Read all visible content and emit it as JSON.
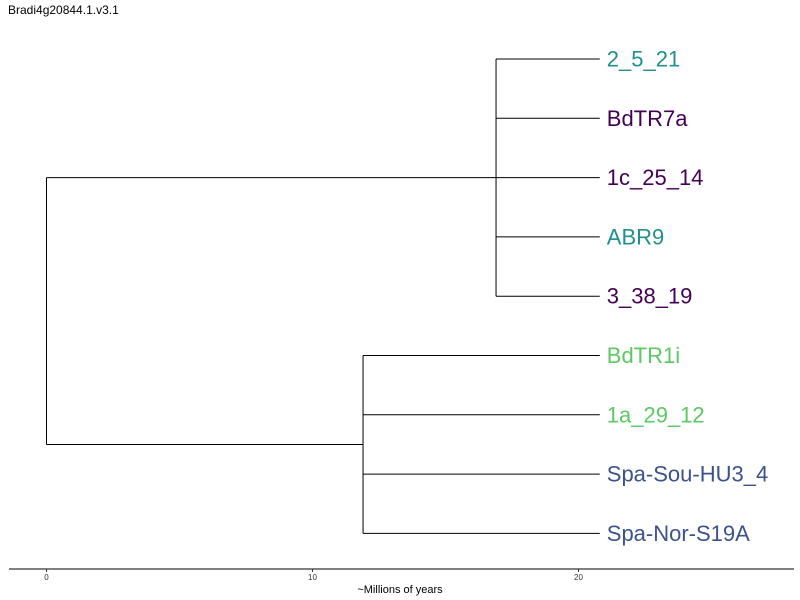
{
  "title": "Bradi4g20844.1.v3.1",
  "axis": {
    "label": "~Millions of years",
    "ticks": [
      0,
      10,
      20
    ],
    "range": [
      0,
      28.5
    ]
  },
  "colors": {
    "teal": "#21908c",
    "purple": "#440154",
    "green": "#5dc863",
    "blue": "#3b528b",
    "line": "#000000"
  },
  "tree": {
    "root": {
      "x": 0
    },
    "clades": [
      {
        "node_x": 16.9,
        "leaves": [
          {
            "label": "2_5_21",
            "color": "teal"
          },
          {
            "label": "BdTR7a",
            "color": "purple"
          },
          {
            "label": "1c_25_14",
            "color": "purple"
          },
          {
            "label": "ABR9",
            "color": "teal"
          },
          {
            "label": "3_38_19",
            "color": "purple"
          }
        ]
      },
      {
        "node_x": 11.9,
        "leaves": [
          {
            "label": "BdTR1i",
            "color": "green"
          },
          {
            "label": "1a_29_12",
            "color": "green"
          },
          {
            "label": "Spa-Sou-HU3_4",
            "color": "blue"
          },
          {
            "label": "Spa-Nor-S19A",
            "color": "blue"
          }
        ]
      }
    ],
    "tip_x": 20.8
  }
}
